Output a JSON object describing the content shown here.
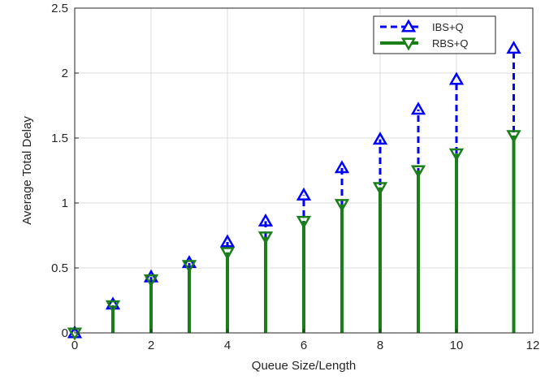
{
  "chart_data": {
    "type": "stem",
    "xlabel": "Queue Size/Length",
    "ylabel": "Average Total Delay",
    "xlim": [
      0,
      12
    ],
    "ylim": [
      0,
      2.5
    ],
    "xticks": [
      0,
      2,
      4,
      6,
      8,
      10,
      12
    ],
    "yticks": [
      0,
      0.5,
      1,
      1.5,
      2,
      2.5
    ],
    "xtick_labels": [
      "0",
      "2",
      "4",
      "6",
      "8",
      "10",
      "12"
    ],
    "ytick_labels": [
      "0",
      "0.5",
      "1",
      "1.5",
      "2",
      "2.5"
    ],
    "grid": true,
    "legend_position": "top-right",
    "x": [
      0,
      1,
      2,
      3,
      4,
      5,
      6,
      7,
      8,
      9,
      10,
      11.5
    ],
    "series": [
      {
        "name": "IBS+Q",
        "color": "#0000ff",
        "marker": "triangle-up",
        "line_style": "dashed",
        "values": [
          0,
          0.22,
          0.43,
          0.54,
          0.7,
          0.86,
          1.06,
          1.27,
          1.49,
          1.72,
          1.95,
          2.19
        ]
      },
      {
        "name": "RBS+Q",
        "color": "#1a7f1a",
        "marker": "triangle-down",
        "line_style": "solid",
        "values": [
          0,
          0.21,
          0.41,
          0.52,
          0.62,
          0.74,
          0.86,
          0.99,
          1.12,
          1.25,
          1.38,
          1.52
        ]
      }
    ]
  }
}
